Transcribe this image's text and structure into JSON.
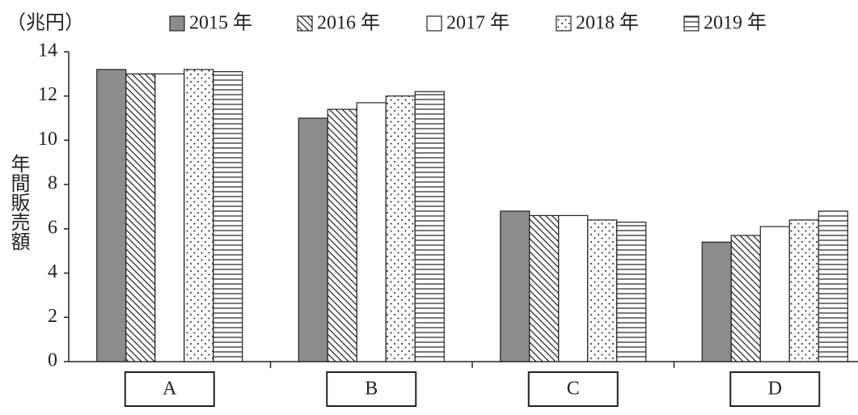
{
  "chart_data": {
    "type": "bar",
    "y_unit": "（兆円）",
    "y_label": "年間販売額",
    "categories": [
      "A",
      "B",
      "C",
      "D"
    ],
    "series": [
      {
        "name": "2015 年",
        "color": "#8c8c8c",
        "pattern": "solid",
        "values": [
          13.2,
          11.0,
          6.8,
          5.4
        ]
      },
      {
        "name": "2016 年",
        "color": "#ffffff",
        "pattern": "diagonal",
        "values": [
          13.0,
          11.4,
          6.6,
          5.7
        ]
      },
      {
        "name": "2017 年",
        "color": "#ffffff",
        "pattern": "none",
        "values": [
          13.0,
          11.7,
          6.6,
          6.1
        ]
      },
      {
        "name": "2018 年",
        "color": "#ffffff",
        "pattern": "dots",
        "values": [
          13.2,
          12.0,
          6.4,
          6.4
        ]
      },
      {
        "name": "2019 年",
        "color": "#ffffff",
        "pattern": "horizontal",
        "values": [
          13.1,
          12.2,
          6.3,
          6.8
        ]
      }
    ],
    "ylim": [
      0,
      14
    ],
    "yticks": [
      0,
      2,
      4,
      6,
      8,
      10,
      12,
      14
    ],
    "grid": false
  }
}
